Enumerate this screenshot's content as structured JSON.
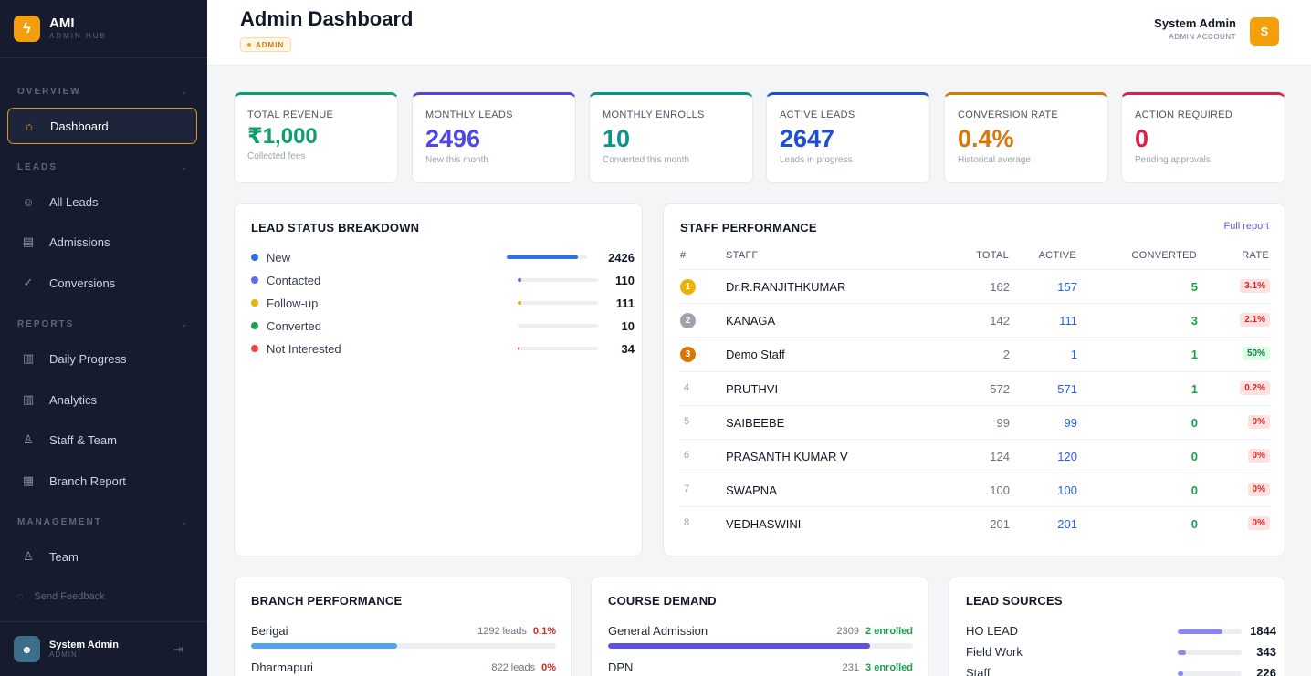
{
  "brand": {
    "name": "AMI",
    "sub": "ADMIN HUB",
    "logo_icon": "bolt-icon"
  },
  "sidebar": {
    "sections": {
      "overview": "OVERVIEW",
      "leads": "LEADS",
      "reports": "REPORTS",
      "management": "MANAGEMENT"
    },
    "items": [
      {
        "label": "Dashboard",
        "icon": "home-icon",
        "active": true
      },
      {
        "label": "All Leads",
        "icon": "users-icon"
      },
      {
        "label": "Admissions",
        "icon": "clipboard-icon"
      },
      {
        "label": "Conversions",
        "icon": "check-circle-icon"
      },
      {
        "label": "Daily Progress",
        "icon": "bar-chart-icon"
      },
      {
        "label": "Analytics",
        "icon": "bar-chart-icon"
      },
      {
        "label": "Staff & Team",
        "icon": "user-icon"
      },
      {
        "label": "Branch Report",
        "icon": "building-icon"
      },
      {
        "label": "Team",
        "icon": "team-icon"
      }
    ],
    "feedback": "Send Feedback",
    "user": {
      "name": "System Admin",
      "role": "ADMIN"
    }
  },
  "header": {
    "title": "Admin Dashboard",
    "badge": "ADMIN",
    "user_name": "System Admin",
    "user_role": "ADMIN ACCOUNT",
    "avatar_letter": "S"
  },
  "stats": [
    {
      "label": "TOTAL REVENUE",
      "value": "₹1,000",
      "sub": "Collected fees",
      "color": "#0e9f6e"
    },
    {
      "label": "MONTHLY LEADS",
      "value": "2496",
      "sub": "New this month",
      "color": "#4f46e5"
    },
    {
      "label": "MONTHLY ENROLLS",
      "value": "10",
      "sub": "Converted this month",
      "color": "#0d9488"
    },
    {
      "label": "ACTIVE LEADS",
      "value": "2647",
      "sub": "Leads in progress",
      "color": "#1d4ed8"
    },
    {
      "label": "CONVERSION RATE",
      "value": "0.4%",
      "sub": "Historical average",
      "color": "#d97706"
    },
    {
      "label": "ACTION REQUIRED",
      "value": "0",
      "sub": "Pending approvals",
      "color": "#e11d48"
    }
  ],
  "lead_status": {
    "title": "LEAD STATUS BREAKDOWN",
    "rows": [
      {
        "name": "New",
        "count": "2426",
        "fraction": 0.89,
        "color": "#2f6fe4"
      },
      {
        "name": "Contacted",
        "count": "110",
        "fraction": 0.04,
        "color": "#6366f1"
      },
      {
        "name": "Follow-up",
        "count": "111",
        "fraction": 0.04,
        "color": "#eab308"
      },
      {
        "name": "Converted",
        "count": "10",
        "fraction": 0.0,
        "color": "#16a34a"
      },
      {
        "name": "Not Interested",
        "count": "34",
        "fraction": 0.01,
        "color": "#ef4444"
      }
    ]
  },
  "staff": {
    "title": "STAFF PERFORMANCE",
    "link": "Full report",
    "headers": {
      "rank": "#",
      "staff": "STAFF",
      "total": "TOTAL",
      "active": "ACTIVE",
      "converted": "CONVERTED",
      "rate": "RATE"
    },
    "rows": [
      {
        "rank": "1",
        "name": "Dr.R.RANJITHKUMAR",
        "total": "162",
        "active": "157",
        "converted": "5",
        "rate": "3.1%"
      },
      {
        "rank": "2",
        "name": "KANAGA",
        "total": "142",
        "active": "111",
        "converted": "3",
        "rate": "2.1%"
      },
      {
        "rank": "3",
        "name": "Demo Staff",
        "total": "2",
        "active": "1",
        "converted": "1",
        "rate": "50%"
      },
      {
        "rank": "4",
        "name": "PRUTHVI",
        "total": "572",
        "active": "571",
        "converted": "1",
        "rate": "0.2%"
      },
      {
        "rank": "5",
        "name": "SAIBEEBE",
        "total": "99",
        "active": "99",
        "converted": "0",
        "rate": "0%"
      },
      {
        "rank": "6",
        "name": "PRASANTH KUMAR V",
        "total": "124",
        "active": "120",
        "converted": "0",
        "rate": "0%"
      },
      {
        "rank": "7",
        "name": "SWAPNA",
        "total": "100",
        "active": "100",
        "converted": "0",
        "rate": "0%"
      },
      {
        "rank": "8",
        "name": "VEDHASWINI",
        "total": "201",
        "active": "201",
        "converted": "0",
        "rate": "0%"
      }
    ]
  },
  "branch": {
    "title": "BRANCH PERFORMANCE",
    "rows": [
      {
        "name": "Berigai",
        "leads": "1292 leads",
        "rate": "0.1%",
        "fraction": 0.48
      },
      {
        "name": "Dharmapuri",
        "leads": "822 leads",
        "rate": "0%",
        "fraction": 0.3
      }
    ]
  },
  "course": {
    "title": "COURSE DEMAND",
    "rows": [
      {
        "name": "General Admission",
        "count": "2309",
        "enrolled": "2 enrolled",
        "fraction": 0.86
      },
      {
        "name": "DPN",
        "count": "231",
        "enrolled": "3 enrolled",
        "fraction": 0.09
      }
    ]
  },
  "sources": {
    "title": "LEAD SOURCES",
    "rows": [
      {
        "name": "HO LEAD",
        "count": "1844",
        "fraction": 0.7
      },
      {
        "name": "Field Work",
        "count": "343",
        "fraction": 0.13
      },
      {
        "name": "Staff",
        "count": "226",
        "fraction": 0.09
      }
    ]
  }
}
